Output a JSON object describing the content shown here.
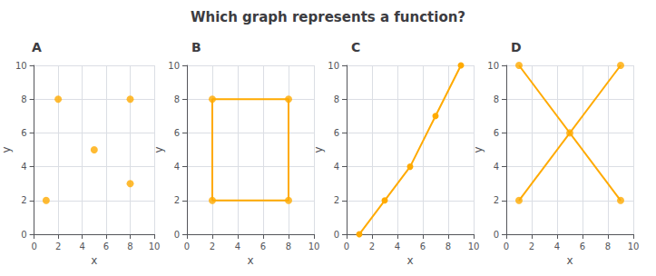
{
  "title": "Which graph represents a function?",
  "chart_data": [
    {
      "type": "scatter",
      "title": "A",
      "xlabel": "x",
      "ylabel": "y",
      "xlim": [
        0,
        10
      ],
      "ylim": [
        0,
        10
      ],
      "xticks": [
        0,
        2,
        4,
        6,
        8,
        10
      ],
      "yticks": [
        0,
        2,
        4,
        6,
        8,
        10
      ],
      "grid": true,
      "series": [
        {
          "type": "scatter",
          "marker": "circle",
          "color": "#ffaa00",
          "x": [
            1,
            2,
            5,
            8,
            8
          ],
          "values": [
            2,
            8,
            5,
            8,
            3
          ]
        }
      ]
    },
    {
      "type": "line",
      "title": "B",
      "xlabel": "x",
      "ylabel": "y",
      "xlim": [
        0,
        10
      ],
      "ylim": [
        0,
        10
      ],
      "xticks": [
        0,
        2,
        4,
        6,
        8,
        10
      ],
      "yticks": [
        0,
        2,
        4,
        6,
        8,
        10
      ],
      "grid": true,
      "series": [
        {
          "type": "line",
          "marker": "none",
          "color": "#ffaa00",
          "x": [
            2,
            8,
            8,
            2,
            2
          ],
          "values": [
            2,
            2,
            8,
            8,
            2
          ]
        },
        {
          "type": "scatter",
          "marker": "circle",
          "color": "#ffaa00",
          "x": [
            2,
            8,
            8,
            2
          ],
          "values": [
            2,
            2,
            8,
            8
          ]
        }
      ]
    },
    {
      "type": "line",
      "title": "C",
      "xlabel": "x",
      "ylabel": "y",
      "xlim": [
        0,
        10
      ],
      "ylim": [
        0,
        10
      ],
      "xticks": [
        0,
        2,
        4,
        6,
        8,
        10
      ],
      "yticks": [
        0,
        2,
        4,
        6,
        8,
        10
      ],
      "grid": true,
      "series": [
        {
          "type": "line",
          "marker": "circle",
          "color": "#ffaa00",
          "x": [
            1,
            3,
            5,
            7,
            9
          ],
          "values": [
            0,
            2,
            4,
            7,
            10
          ]
        }
      ]
    },
    {
      "type": "line",
      "title": "D",
      "xlabel": "x",
      "ylabel": "y",
      "xlim": [
        0,
        10
      ],
      "ylim": [
        0,
        10
      ],
      "xticks": [
        0,
        2,
        4,
        6,
        8,
        10
      ],
      "yticks": [
        0,
        2,
        4,
        6,
        8,
        10
      ],
      "grid": true,
      "series": [
        {
          "type": "line",
          "marker": "none",
          "color": "#ffaa00",
          "x": [
            1,
            9
          ],
          "values": [
            10,
            2
          ]
        },
        {
          "type": "line",
          "marker": "none",
          "color": "#ffaa00",
          "x": [
            1,
            9
          ],
          "values": [
            2,
            10
          ]
        },
        {
          "type": "scatter",
          "marker": "circle",
          "color": "#ffaa00",
          "x": [
            1,
            9,
            1,
            9,
            5
          ],
          "values": [
            10,
            2,
            2,
            10,
            6
          ]
        }
      ]
    }
  ]
}
